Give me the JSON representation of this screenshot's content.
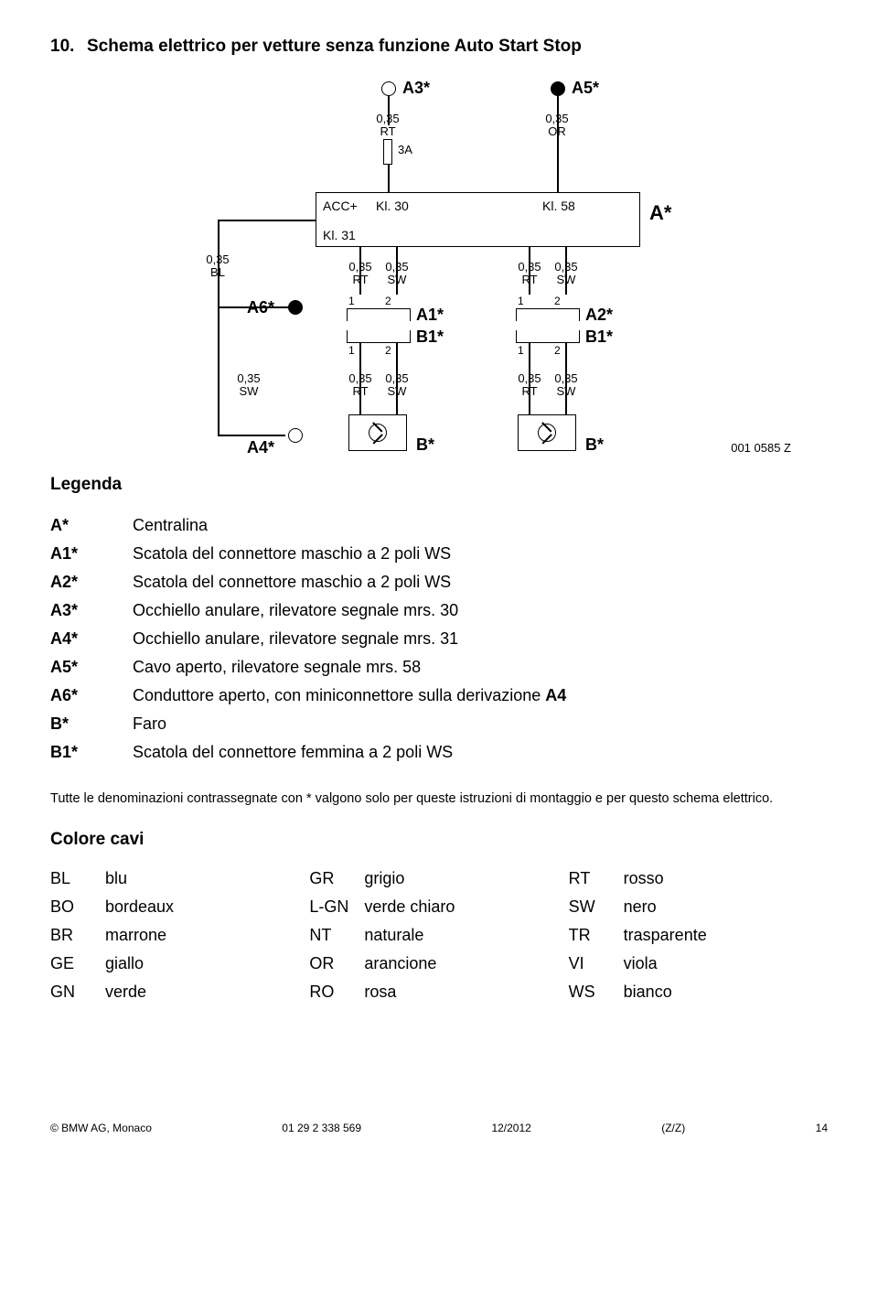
{
  "title": {
    "num": "10.",
    "text": "Schema elettrico per vetture senza funzione Auto Start Stop"
  },
  "diagram": {
    "code": "001 0585 Z",
    "labels": {
      "A3": "A3*",
      "A5": "A5*",
      "A6": "A6*",
      "A4": "A4*",
      "Astar": "A*",
      "A1": "A1*",
      "A2": "A2*",
      "B1a": "B1*",
      "B1b": "B1*",
      "Bstar1": "B*",
      "Bstar2": "B*",
      "w1": "0,35",
      "c_rt": "RT",
      "c_or": "OR",
      "c_bl": "BL",
      "c_sw": "SW",
      "fuse": "3A",
      "acc": "ACC+",
      "kl30": "Kl. 30",
      "kl58": "Kl. 58",
      "kl31": "Kl. 31",
      "n1": "1",
      "n2": "2"
    }
  },
  "legenda": {
    "heading": "Legenda",
    "items": [
      {
        "k": "A*",
        "d": "Centralina"
      },
      {
        "k": "A1*",
        "d": "Scatola del connettore maschio a 2 poli WS"
      },
      {
        "k": "A2*",
        "d": "Scatola del connettore maschio a 2 poli WS"
      },
      {
        "k": "A3*",
        "d": "Occhiello anulare, rilevatore segnale mrs. 30"
      },
      {
        "k": "A4*",
        "d": "Occhiello anulare, rilevatore segnale mrs. 31"
      },
      {
        "k": "A5*",
        "d": "Cavo aperto, rilevatore segnale mrs. 58"
      },
      {
        "k": "A6*",
        "d": "Conduttore aperto, con miniconnettore sulla derivazione A4"
      },
      {
        "k": "B*",
        "d": "Faro"
      },
      {
        "k": "B1*",
        "d": "Scatola del connettore femmina a 2 poli WS"
      }
    ]
  },
  "note": "Tutte le denominazioni contrassegnate con * valgono solo per queste istruzioni di montaggio e per questo schema elettrico.",
  "colors": {
    "heading": "Colore cavi",
    "cols": [
      [
        [
          "BL",
          "blu"
        ],
        [
          "BO",
          "bordeaux"
        ],
        [
          "BR",
          "marrone"
        ],
        [
          "GE",
          "giallo"
        ],
        [
          "GN",
          "verde"
        ]
      ],
      [
        [
          "GR",
          "grigio"
        ],
        [
          "L-GN",
          "verde chiaro"
        ],
        [
          "NT",
          "naturale"
        ],
        [
          "OR",
          "arancione"
        ],
        [
          "RO",
          "rosa"
        ]
      ],
      [
        [
          "RT",
          "rosso"
        ],
        [
          "SW",
          "nero"
        ],
        [
          "TR",
          "trasparente"
        ],
        [
          "VI",
          "viola"
        ],
        [
          "WS",
          "bianco"
        ]
      ]
    ]
  },
  "footer": {
    "left": "© BMW AG, Monaco",
    "mid": "01 29 2 338 569",
    "date": "12/2012",
    "rev": "(Z/Z)",
    "page": "14"
  }
}
